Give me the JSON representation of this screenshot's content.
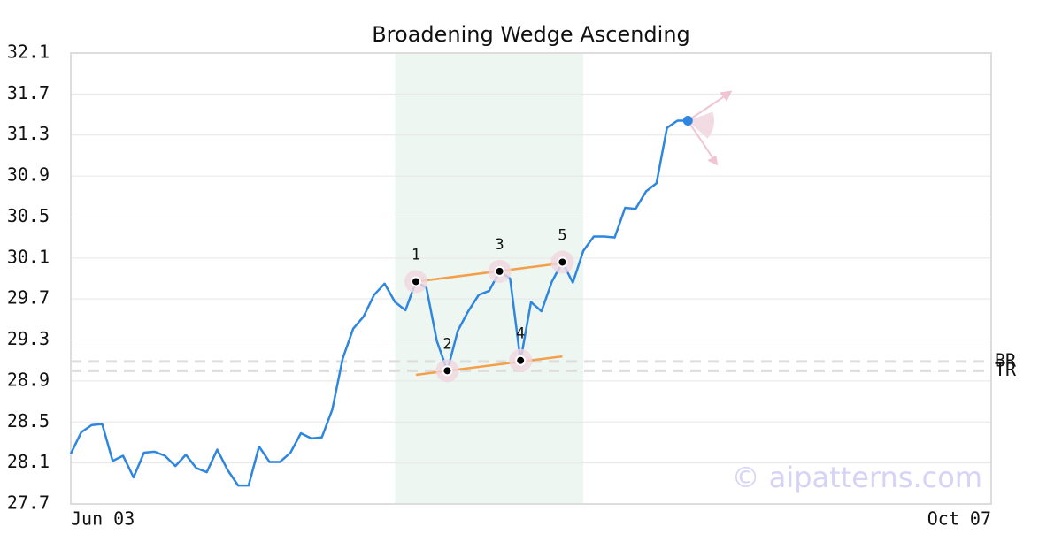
{
  "chart_data": {
    "type": "line",
    "title": "Broadening Wedge Ascending",
    "categories": [
      "Jun 03",
      null,
      null,
      null,
      null,
      null,
      null,
      null,
      null,
      null,
      null,
      null,
      null,
      null,
      null,
      null,
      null,
      null,
      null,
      null,
      null,
      null,
      null,
      null,
      null,
      null,
      null,
      null,
      null,
      null,
      null,
      null,
      null,
      null,
      null,
      null,
      null,
      null,
      null,
      null,
      null,
      null,
      null,
      null,
      null,
      null,
      null,
      null,
      null,
      null,
      null,
      null,
      null,
      null,
      null,
      null,
      null,
      null,
      null,
      null,
      null,
      null,
      null,
      null,
      null,
      null,
      null,
      null,
      null,
      null,
      null,
      null,
      null,
      null,
      null,
      null,
      null,
      null,
      null,
      null,
      null,
      null,
      null,
      null,
      null,
      null,
      null,
      null,
      "Oct 07"
    ],
    "values": [
      28.19,
      28.4,
      28.47,
      28.48,
      28.12,
      28.17,
      27.96,
      28.2,
      28.21,
      28.17,
      28.07,
      28.18,
      28.05,
      28.01,
      28.23,
      28.03,
      27.88,
      27.88,
      28.26,
      28.11,
      28.11,
      28.2,
      28.39,
      28.34,
      28.35,
      28.62,
      29.12,
      29.41,
      29.53,
      29.74,
      29.85,
      29.67,
      29.59,
      29.87,
      29.81,
      29.29,
      29.0,
      29.39,
      29.58,
      29.74,
      29.78,
      29.97,
      29.9,
      29.1,
      29.67,
      29.58,
      29.87,
      30.06,
      29.86,
      30.17,
      30.31,
      30.31,
      30.3,
      30.59,
      30.58,
      30.75,
      30.83,
      31.37,
      31.44,
      31.44,
      null,
      null,
      null,
      null,
      null,
      null,
      null,
      null,
      null,
      null,
      null,
      null,
      null,
      null,
      null,
      null,
      null,
      null,
      null,
      null,
      null,
      null,
      null,
      null,
      null,
      null,
      null,
      null,
      null
    ],
    "color": "#2e86de",
    "ylim": [
      27.7,
      32.1
    ],
    "yticks": [
      27.7,
      28.1,
      28.5,
      28.9,
      29.3,
      29.7,
      30.1,
      30.5,
      30.9,
      31.3,
      31.7,
      32.1
    ],
    "grid": true,
    "highlight": [
      31,
      49
    ],
    "pattern_points": [
      {
        "label": "1",
        "index": 33,
        "value": 29.87
      },
      {
        "label": "2",
        "index": 36,
        "value": 29.0
      },
      {
        "label": "3",
        "index": 41,
        "value": 29.97
      },
      {
        "label": "4",
        "index": 43,
        "value": 29.1
      },
      {
        "label": "5",
        "index": 47,
        "value": 30.06
      }
    ],
    "trend_lines": [
      {
        "x": [
          33,
          47
        ],
        "values": [
          29.87,
          30.05
        ],
        "color": "#f4a04a"
      },
      {
        "x": [
          33,
          47
        ],
        "values": [
          28.96,
          29.14
        ],
        "color": "#f4a04a"
      }
    ],
    "levels": [
      {
        "label": "BR",
        "value": 29.09
      },
      {
        "label": "TR",
        "value": 29.0
      }
    ],
    "watermark": "© aipatterns.com"
  }
}
